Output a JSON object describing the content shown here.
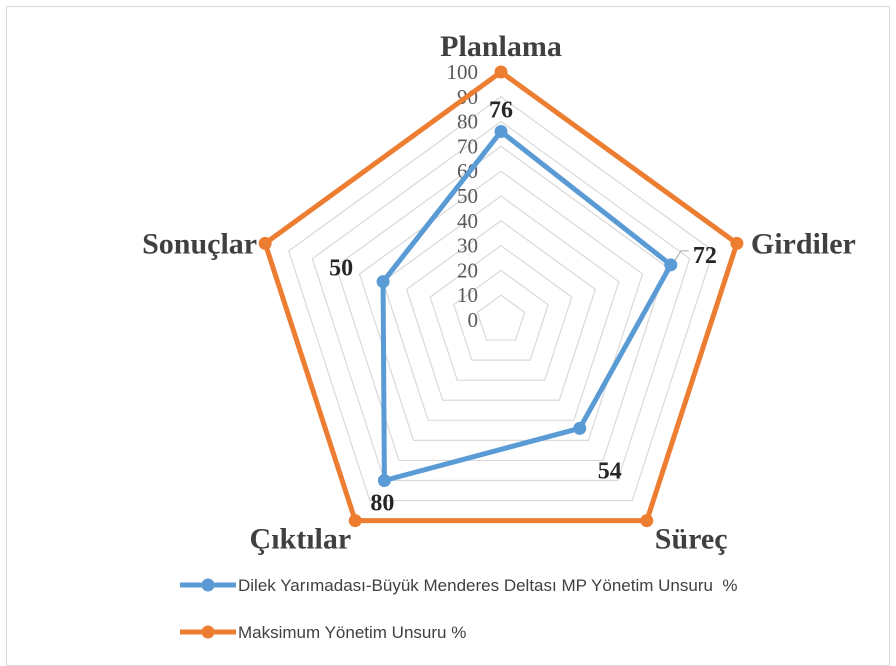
{
  "chart_data": {
    "type": "radar",
    "categories": [
      "Planlama",
      "Girdiler",
      "Süreç",
      "Çıktılar",
      "Sonuçlar"
    ],
    "rlim": [
      0,
      100
    ],
    "ticks": [
      "0",
      "10",
      "20",
      "30",
      "40",
      "50",
      "60",
      "70",
      "80",
      "90",
      "100"
    ],
    "series": [
      {
        "name": "Dilek Yarımadası-Büyük Menderes Deltası MP Yönetim Unsuru  %",
        "values": [
          76,
          72,
          54,
          80,
          50
        ],
        "color": "#5b9bd5",
        "labels": [
          "76",
          "72",
          "54",
          "80",
          "50"
        ]
      },
      {
        "name": "Maksimum Yönetim Unsuru %",
        "values": [
          100,
          100,
          100,
          100,
          100
        ],
        "color": "#ed7d31"
      }
    ],
    "grid_color": "#d9d9d9",
    "legend_position": "bottom-left",
    "grid": true
  }
}
